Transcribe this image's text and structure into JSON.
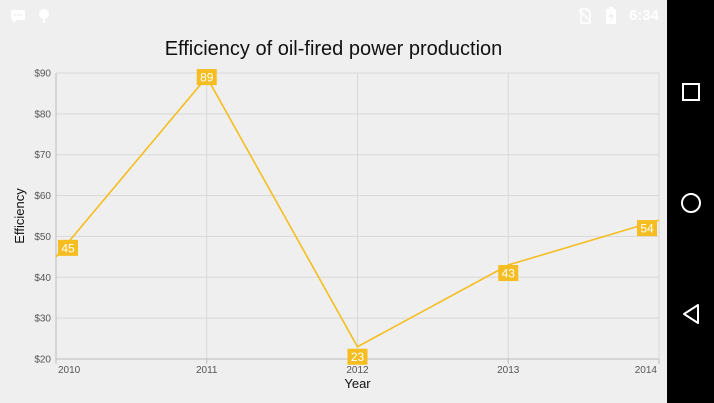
{
  "statusbar": {
    "time": "6:34",
    "icons": [
      "chat-icon",
      "location-icon",
      "no-sim-icon",
      "battery-charging-icon"
    ]
  },
  "navbar": {
    "buttons": [
      "recent-apps-button",
      "home-button",
      "back-button"
    ]
  },
  "colors": {
    "screen_bg": "#efefef",
    "series": "#f5bd1f",
    "label_text": "#ffffff",
    "grid": "#d8d8d8",
    "axis": "#bdbdbd",
    "navbar": "#000000"
  },
  "chart_data": {
    "type": "line",
    "title": "Efficiency of oil-fired power production",
    "xlabel": "Year",
    "ylabel": "Efficiency",
    "categories": [
      "2010",
      "2011",
      "2012",
      "2013",
      "2014"
    ],
    "series": [
      {
        "values": [
          45,
          89,
          23,
          43,
          54
        ]
      }
    ],
    "ylim": [
      20,
      90
    ],
    "y_ticks": [
      "$20",
      "$30",
      "$40",
      "$50",
      "$60",
      "$70",
      "$80",
      "$90"
    ],
    "grid": true,
    "data_labels": true
  }
}
